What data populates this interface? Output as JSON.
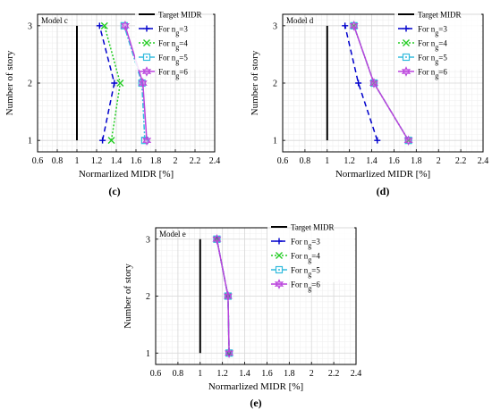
{
  "chart_data": [
    {
      "id": "c",
      "type": "line",
      "model_label": "Model c",
      "caption": "(c)",
      "xlabel": "Normarlized MIDR [%]",
      "ylabel": "Number of story",
      "xlim": [
        0.6,
        2.4
      ],
      "ylim": [
        0.8,
        3.2
      ],
      "xticks": [
        "0.6",
        "0.8",
        "1",
        "1.2",
        "1.4",
        "1.6",
        "1.8",
        "2",
        "2.2",
        "2.4"
      ],
      "yticks": [
        "1",
        "2",
        "3"
      ],
      "grid": true,
      "legend_position": "top-right",
      "target": {
        "name": "Target MIDR",
        "x": [
          1,
          1
        ],
        "y": [
          1,
          3
        ],
        "color": "#000000"
      },
      "series": [
        {
          "name_main": "For n",
          "name_sub": "g",
          "name_tail": "=3",
          "x": [
            1.26,
            1.38,
            1.23
          ],
          "y": [
            1,
            2,
            3
          ],
          "color": "#0000cc",
          "dash": "6,4",
          "marker": "plus"
        },
        {
          "name_main": "For n",
          "name_sub": "g",
          "name_tail": "=4",
          "x": [
            1.35,
            1.44,
            1.28
          ],
          "y": [
            1,
            2,
            3
          ],
          "color": "#22cc22",
          "dash": "2,2",
          "marker": "x"
        },
        {
          "name_main": "For n",
          "name_sub": "g",
          "name_tail": "=5",
          "x": [
            1.69,
            1.66,
            1.48
          ],
          "y": [
            1,
            2,
            3
          ],
          "color": "#33bbdd",
          "dash": "6,2,2,2",
          "marker": "square"
        },
        {
          "name_main": "For n",
          "name_sub": "g",
          "name_tail": "=6",
          "x": [
            1.71,
            1.67,
            1.49
          ],
          "y": [
            1,
            2,
            3
          ],
          "color": "#bb44dd",
          "dash": "",
          "marker": "hexagram"
        }
      ]
    },
    {
      "id": "d",
      "type": "line",
      "model_label": "Model d",
      "caption": "(d)",
      "xlabel": "Normarlized MIDR [%]",
      "ylabel": "Number of story",
      "xlim": [
        0.6,
        2.4
      ],
      "ylim": [
        0.8,
        3.2
      ],
      "xticks": [
        "0.6",
        "0.8",
        "1",
        "1.2",
        "1.4",
        "1.6",
        "1.8",
        "2",
        "2.2",
        "2.4"
      ],
      "yticks": [
        "1",
        "2",
        "3"
      ],
      "grid": true,
      "legend_position": "top-right",
      "target": {
        "name": "Target MIDR",
        "x": [
          1,
          1
        ],
        "y": [
          1,
          3
        ],
        "color": "#000000"
      },
      "series": [
        {
          "name_main": "For n",
          "name_sub": "g",
          "name_tail": "=3",
          "x": [
            1.45,
            1.28,
            1.16
          ],
          "y": [
            1,
            2,
            3
          ],
          "color": "#0000cc",
          "dash": "6,4",
          "marker": "plus"
        },
        {
          "name_main": "For n",
          "name_sub": "g",
          "name_tail": "=4",
          "x": [
            1.73,
            1.42,
            1.24
          ],
          "y": [
            1,
            2,
            3
          ],
          "color": "#22cc22",
          "dash": "2,2",
          "marker": "x"
        },
        {
          "name_main": "For n",
          "name_sub": "g",
          "name_tail": "=5",
          "x": [
            1.73,
            1.42,
            1.24
          ],
          "y": [
            1,
            2,
            3
          ],
          "color": "#33bbdd",
          "dash": "6,2,2,2",
          "marker": "square"
        },
        {
          "name_main": "For n",
          "name_sub": "g",
          "name_tail": "=6",
          "x": [
            1.73,
            1.42,
            1.24
          ],
          "y": [
            1,
            2,
            3
          ],
          "color": "#bb44dd",
          "dash": "",
          "marker": "hexagram"
        }
      ]
    },
    {
      "id": "e",
      "type": "line",
      "model_label": "Model e",
      "caption": "(e)",
      "xlabel": "Normarlized MIDR [%]",
      "ylabel": "Number of story",
      "xlim": [
        0.6,
        2.4
      ],
      "ylim": [
        0.8,
        3.2
      ],
      "xticks": [
        "0.6",
        "0.8",
        "1",
        "1.2",
        "1.4",
        "1.6",
        "1.8",
        "2",
        "2.2",
        "2.4"
      ],
      "yticks": [
        "1",
        "2",
        "3"
      ],
      "grid": true,
      "legend_position": "top-right",
      "target": {
        "name": "Target MIDR",
        "x": [
          1,
          1
        ],
        "y": [
          1,
          3
        ],
        "color": "#000000"
      },
      "series": [
        {
          "name_main": "For n",
          "name_sub": "g",
          "name_tail": "=3",
          "x": [
            1.26,
            1.25,
            1.15
          ],
          "y": [
            1,
            2,
            3
          ],
          "color": "#0000cc",
          "dash": "6,4",
          "marker": "plus"
        },
        {
          "name_main": "For n",
          "name_sub": "g",
          "name_tail": "=4",
          "x": [
            1.26,
            1.25,
            1.15
          ],
          "y": [
            1,
            2,
            3
          ],
          "color": "#22cc22",
          "dash": "2,2",
          "marker": "x"
        },
        {
          "name_main": "For n",
          "name_sub": "g",
          "name_tail": "=5",
          "x": [
            1.26,
            1.25,
            1.15
          ],
          "y": [
            1,
            2,
            3
          ],
          "color": "#33bbdd",
          "dash": "6,2,2,2",
          "marker": "square"
        },
        {
          "name_main": "For n",
          "name_sub": "g",
          "name_tail": "=6",
          "x": [
            1.26,
            1.25,
            1.15
          ],
          "y": [
            1,
            2,
            3
          ],
          "color": "#bb44dd",
          "dash": "",
          "marker": "hexagram"
        }
      ]
    }
  ]
}
